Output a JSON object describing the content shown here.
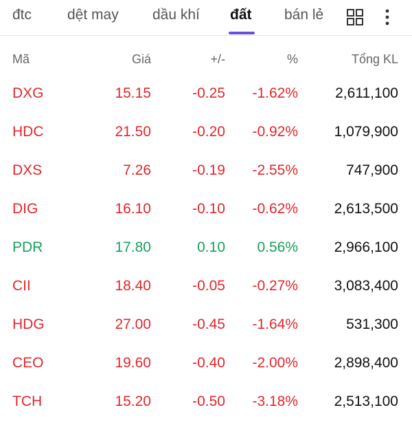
{
  "tabs": [
    {
      "label": "đtc"
    },
    {
      "label": "dệt may"
    },
    {
      "label": "dầu khí"
    },
    {
      "label": "đất",
      "active": true
    },
    {
      "label": "bán lẻ"
    }
  ],
  "icons": {
    "grid": "grid-view-icon",
    "more": "more-vertical-icon"
  },
  "colors": {
    "down": "#e0262b",
    "up": "#16a05a",
    "accent": "#6b4fd8"
  },
  "table": {
    "headers": {
      "symbol": "Mã",
      "price": "Giá",
      "change": "+/-",
      "percent": "%",
      "volume": "Tổng KL"
    },
    "rows": [
      {
        "symbol": "DXG",
        "price": "15.15",
        "change": "-0.25",
        "percent": "-1.62%",
        "volume": "2,611,100",
        "trend": "down"
      },
      {
        "symbol": "HDC",
        "price": "21.50",
        "change": "-0.20",
        "percent": "-0.92%",
        "volume": "1,079,900",
        "trend": "down"
      },
      {
        "symbol": "DXS",
        "price": "7.26",
        "change": "-0.19",
        "percent": "-2.55%",
        "volume": "747,900",
        "trend": "down"
      },
      {
        "symbol": "DIG",
        "price": "16.10",
        "change": "-0.10",
        "percent": "-0.62%",
        "volume": "2,613,500",
        "trend": "down"
      },
      {
        "symbol": "PDR",
        "price": "17.80",
        "change": "0.10",
        "percent": "0.56%",
        "volume": "2,966,100",
        "trend": "up"
      },
      {
        "symbol": "CII",
        "price": "18.40",
        "change": "-0.05",
        "percent": "-0.27%",
        "volume": "3,083,400",
        "trend": "down"
      },
      {
        "symbol": "HDG",
        "price": "27.00",
        "change": "-0.45",
        "percent": "-1.64%",
        "volume": "531,300",
        "trend": "down"
      },
      {
        "symbol": "CEO",
        "price": "19.60",
        "change": "-0.40",
        "percent": "-2.00%",
        "volume": "2,898,400",
        "trend": "down"
      },
      {
        "symbol": "TCH",
        "price": "15.20",
        "change": "-0.50",
        "percent": "-3.18%",
        "volume": "2,513,100",
        "trend": "down"
      }
    ]
  }
}
